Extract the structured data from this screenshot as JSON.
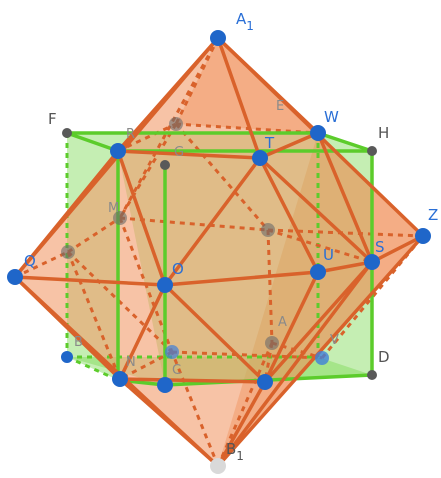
{
  "figure": {
    "colors": {
      "cube_face": "#7ed957",
      "cube_edge": "#5ccc2b",
      "octa_face": "#f29b6a",
      "octa_edge": "#d9622b",
      "blue_point": "#1f66c9",
      "gray_point": "#595959",
      "white_point": "#d9d9d9"
    },
    "labels": {
      "A1": "A",
      "A1_sub": "1",
      "B1": "B",
      "B1_sub": "1",
      "E": "E",
      "F": "F",
      "H": "H",
      "W": "W",
      "Z": "Z",
      "S": "S",
      "U": "U",
      "T": "T",
      "Q": "Q",
      "O": "O",
      "D": "D",
      "N": "N",
      "C": "C",
      "R": "R",
      "B": "B",
      "G": "G",
      "M": "M",
      "A": "A",
      "V": "V"
    }
  }
}
